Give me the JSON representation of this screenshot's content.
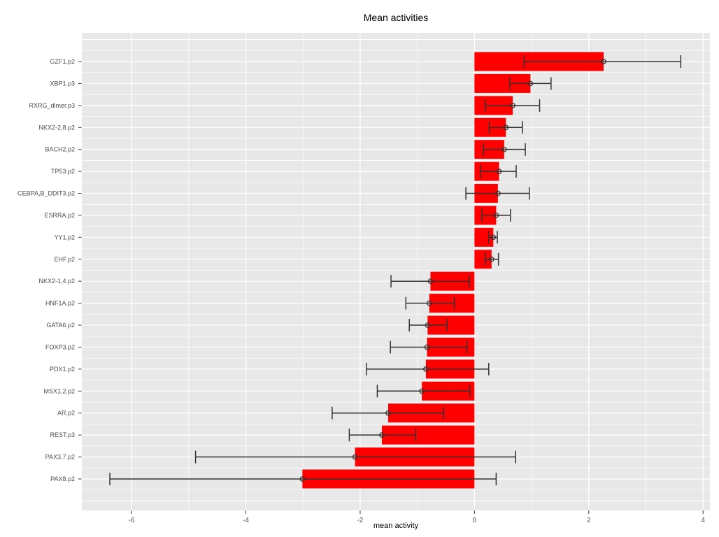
{
  "chart_data": {
    "type": "bar",
    "orientation": "horizontal",
    "title": "Mean activities",
    "xlabel": "mean activity",
    "ylabel": "",
    "xlim": [
      -6.87,
      4.12
    ],
    "x_ticks": [
      -6,
      -4,
      -2,
      0,
      2,
      4
    ],
    "x_tick_labels": [
      "-6",
      "-4",
      "-2",
      "0",
      "2",
      "4"
    ],
    "x_minor_ticks": [
      -5,
      -3,
      -1,
      1,
      3
    ],
    "grid": "on",
    "legend": "none",
    "categories": [
      "GZF1.p2",
      "XBP1.p3",
      "RXRG_dimer.p3",
      "NKX2-2,8.p2",
      "BACH2.p2",
      "TP53.p2",
      "CEBPA,B_DDIT3.p2",
      "ESRRA.p2",
      "YY1.p2",
      "EHF.p2",
      "NKX2-1,4.p2",
      "HNF1A.p2",
      "GATA6.p2",
      "FOXP3.p2",
      "PDX1.p2",
      "MSX1,2.p2",
      "AR.p2",
      "REST.p3",
      "PAX3,7.p2",
      "PAX8.p2"
    ],
    "values": [
      2.26,
      0.98,
      0.67,
      0.55,
      0.52,
      0.43,
      0.41,
      0.38,
      0.33,
      0.3,
      -0.77,
      -0.79,
      -0.82,
      -0.83,
      -0.85,
      -0.92,
      -1.51,
      -1.62,
      -2.09,
      -3.01
    ],
    "error_low": [
      0.87,
      0.62,
      0.19,
      0.26,
      0.16,
      0.11,
      -0.15,
      0.13,
      0.25,
      0.19,
      -1.46,
      -1.2,
      -1.14,
      -1.47,
      -1.89,
      -1.7,
      -2.49,
      -2.19,
      -4.88,
      -6.38
    ],
    "error_high": [
      3.61,
      1.34,
      1.14,
      0.84,
      0.89,
      0.73,
      0.96,
      0.63,
      0.4,
      0.42,
      -0.09,
      -0.35,
      -0.48,
      -0.13,
      0.25,
      -0.08,
      -0.54,
      -1.03,
      0.72,
      0.38
    ],
    "colors": {
      "bar": "#FF0000",
      "error": "#333333",
      "marker": "#333333",
      "plot_bg": "#E8E8E8",
      "grid": "#FFFFFF",
      "axis_text": "#4D4D4D",
      "tick_mark": "#333333",
      "title": "#000000"
    }
  }
}
